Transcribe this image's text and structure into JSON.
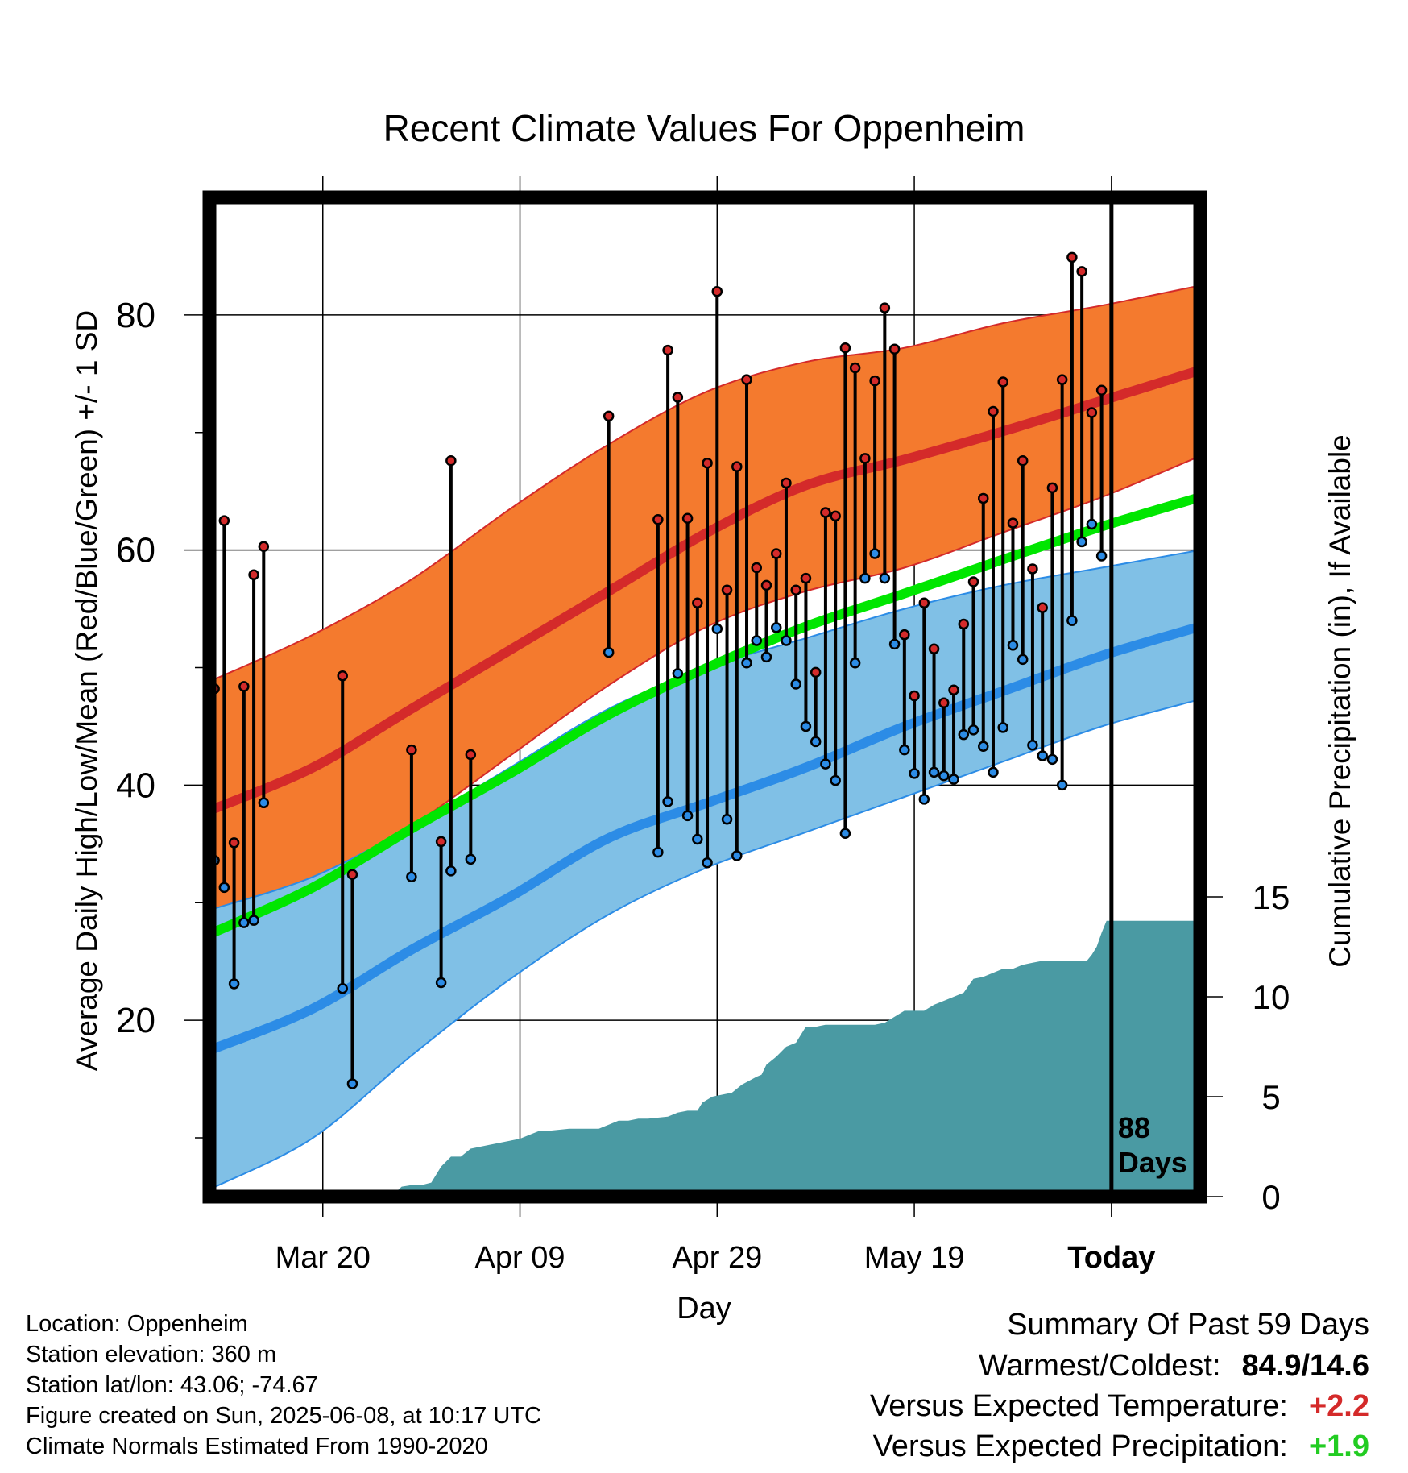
{
  "title": "Recent Climate Values For Oppenheim",
  "xlabel": "Day",
  "ylabel": "Average Daily High/Low/Mean (Red/Blue/Green) +/- 1 SD",
  "y2label": "Cumulative Precipitation (in), If Available",
  "today_marker": {
    "line1": "88",
    "line2": "Days"
  },
  "info": {
    "location": "Location: Oppenheim",
    "elevation": "Station elevation: 360 m",
    "latlon": "Station lat/lon: 43.06; -74.67",
    "created": "Figure created on Sun, 2025-06-08, at 10:17 UTC",
    "normals": "Climate Normals Estimated From 1990-2020"
  },
  "summary": {
    "title": "Summary Of Past 59 Days",
    "warmest_label": "Warmest/Coldest:",
    "warmest_value": "84.9/14.6",
    "temp_label": "Versus Expected Temperature:",
    "temp_value": "+2.2",
    "precip_label": "Versus Expected Precipitation:",
    "precip_value": "+1.9"
  },
  "colors": {
    "high_band": "#f47a2e",
    "high_line": "#d42a2a",
    "low_band": "#80c0e6",
    "low_line": "#2c8ce6",
    "mean_line": "#00e600",
    "precip_fill": "#4a9aa3",
    "positive_temp": "#d42a2a",
    "positive_precip": "#22cc22"
  },
  "chart_data": {
    "type": "line",
    "x_unit": "day index (0 = Mar 09)",
    "x_ticks": [
      {
        "day": 11,
        "label": "Mar 20"
      },
      {
        "day": 31,
        "label": "Apr 09"
      },
      {
        "day": 51,
        "label": "Apr 29"
      },
      {
        "day": 71,
        "label": "May 19"
      },
      {
        "day": 91,
        "label": "Today"
      }
    ],
    "xlim": [
      -0.5,
      100
    ],
    "ylim": [
      5,
      90
    ],
    "y_ticks": [
      20,
      40,
      60,
      80
    ],
    "y2lim": [
      0,
      50
    ],
    "y2_ticks": [
      0,
      5,
      10,
      15
    ],
    "today_day": 91,
    "normals": {
      "days": [
        0,
        10,
        20,
        30,
        40,
        50,
        60,
        70,
        80,
        90,
        100
      ],
      "high_mean": [
        38,
        41.5,
        46.5,
        51.5,
        56.5,
        61.5,
        65.5,
        67.7,
        70.1,
        72.7,
        75.3
      ],
      "high_upper": [
        49,
        52.8,
        57.5,
        63.5,
        69,
        73.5,
        76,
        77.2,
        79.3,
        80.8,
        82.5
      ],
      "high_lower": [
        29,
        31.5,
        36.5,
        42.5,
        48.5,
        53.5,
        56.5,
        58.5,
        61.5,
        64.5,
        68
      ],
      "low_mean": [
        17.6,
        21,
        26,
        30.5,
        35.5,
        38.5,
        41.5,
        45,
        48,
        51,
        53.5
      ],
      "low_upper": [
        29.5,
        32.2,
        36.5,
        41.5,
        46.5,
        50,
        52.5,
        55,
        57,
        58.5,
        60
      ],
      "low_lower": [
        5.8,
        10,
        17,
        23.5,
        29,
        33,
        36,
        39,
        42,
        45,
        47.3
      ],
      "mean": [
        27.5,
        31.3,
        36.3,
        41,
        46,
        50,
        53.5,
        56.3,
        59.2,
        62,
        64.5
      ]
    },
    "observations": [
      {
        "day": 0,
        "high": 48.2,
        "low": 33.6
      },
      {
        "day": 1,
        "high": 62.5,
        "low": 31.3
      },
      {
        "day": 2,
        "high": 35.1,
        "low": 23.1
      },
      {
        "day": 3,
        "high": 48.4,
        "low": 28.3
      },
      {
        "day": 4,
        "high": 57.9,
        "low": 28.5
      },
      {
        "day": 5,
        "high": 60.3,
        "low": 38.5
      },
      {
        "day": 13,
        "high": 49.3,
        "low": 22.7
      },
      {
        "day": 14,
        "high": 32.4,
        "low": 14.6
      },
      {
        "day": 20,
        "high": 43.0,
        "low": 32.2
      },
      {
        "day": 23,
        "high": 35.2,
        "low": 23.2
      },
      {
        "day": 24,
        "high": 67.6,
        "low": 32.7
      },
      {
        "day": 26,
        "high": 42.6,
        "low": 33.7
      },
      {
        "day": 40,
        "high": 71.4,
        "low": 51.3
      },
      {
        "day": 45,
        "high": 62.6,
        "low": 34.3
      },
      {
        "day": 46,
        "high": 77.0,
        "low": 38.6
      },
      {
        "day": 47,
        "high": 73.0,
        "low": 49.5
      },
      {
        "day": 48,
        "high": 62.7,
        "low": 37.4
      },
      {
        "day": 49,
        "high": 55.5,
        "low": 35.4
      },
      {
        "day": 50,
        "high": 67.4,
        "low": 33.4
      },
      {
        "day": 51,
        "high": 82.0,
        "low": 53.3
      },
      {
        "day": 52,
        "high": 56.6,
        "low": 37.1
      },
      {
        "day": 53,
        "high": 67.1,
        "low": 34.0
      },
      {
        "day": 54,
        "high": 74.5,
        "low": 50.4
      },
      {
        "day": 55,
        "high": 58.5,
        "low": 52.3
      },
      {
        "day": 56,
        "high": 57.0,
        "low": 50.9
      },
      {
        "day": 57,
        "high": 59.7,
        "low": 53.4
      },
      {
        "day": 58,
        "high": 65.7,
        "low": 52.3
      },
      {
        "day": 59,
        "high": 56.6,
        "low": 48.6
      },
      {
        "day": 60,
        "high": 57.6,
        "low": 45.0
      },
      {
        "day": 61,
        "high": 49.6,
        "low": 43.7
      },
      {
        "day": 62,
        "high": 63.2,
        "low": 41.8
      },
      {
        "day": 63,
        "high": 62.9,
        "low": 40.4
      },
      {
        "day": 64,
        "high": 77.2,
        "low": 35.9
      },
      {
        "day": 65,
        "high": 75.5,
        "low": 50.4
      },
      {
        "day": 66,
        "high": 67.8,
        "low": 57.6
      },
      {
        "day": 67,
        "high": 74.4,
        "low": 59.7
      },
      {
        "day": 68,
        "high": 80.6,
        "low": 57.6
      },
      {
        "day": 69,
        "high": 77.1,
        "low": 52.0
      },
      {
        "day": 70,
        "high": 52.8,
        "low": 43.0
      },
      {
        "day": 71,
        "high": 47.6,
        "low": 41.0
      },
      {
        "day": 72,
        "high": 55.5,
        "low": 38.8
      },
      {
        "day": 73,
        "high": 51.6,
        "low": 41.1
      },
      {
        "day": 74,
        "high": 47.0,
        "low": 40.8
      },
      {
        "day": 75,
        "high": 48.1,
        "low": 40.5
      },
      {
        "day": 76,
        "high": 53.7,
        "low": 44.3
      },
      {
        "day": 77,
        "high": 57.3,
        "low": 44.7
      },
      {
        "day": 78,
        "high": 64.4,
        "low": 43.3
      },
      {
        "day": 79,
        "high": 71.8,
        "low": 41.1
      },
      {
        "day": 80,
        "high": 74.3,
        "low": 44.9
      },
      {
        "day": 81,
        "high": 62.3,
        "low": 51.9
      },
      {
        "day": 82,
        "high": 67.6,
        "low": 50.7
      },
      {
        "day": 83,
        "high": 58.4,
        "low": 43.4
      },
      {
        "day": 84,
        "high": 55.1,
        "low": 42.5
      },
      {
        "day": 85,
        "high": 65.3,
        "low": 42.2
      },
      {
        "day": 86,
        "high": 74.5,
        "low": 40.0
      },
      {
        "day": 87,
        "high": 84.9,
        "low": 54.0
      },
      {
        "day": 88,
        "high": 83.7,
        "low": 60.7
      },
      {
        "day": 89,
        "high": 71.7,
        "low": 62.2
      },
      {
        "day": 90,
        "high": 73.6,
        "low": 59.5
      }
    ],
    "precip": {
      "days": [
        17.9,
        19,
        20.3,
        21.2,
        22,
        23,
        24,
        25,
        26,
        28,
        30,
        31,
        32,
        33,
        34,
        36,
        39,
        40,
        41,
        42,
        43,
        44,
        46,
        47,
        48,
        49,
        49.5,
        50.5,
        51.5,
        52.5,
        53.5,
        55,
        55.5,
        56,
        57,
        58,
        59,
        60,
        61,
        62,
        63,
        64,
        65,
        66,
        67,
        68,
        69,
        70,
        71,
        72,
        73,
        74,
        75,
        76,
        77,
        78,
        79,
        80,
        81,
        82,
        83,
        84,
        85,
        86,
        87,
        88,
        88.5,
        89,
        89.5,
        90,
        90.5,
        91,
        92,
        100
      ],
      "values": [
        0,
        0.5,
        0.6,
        0.6,
        0.7,
        1.5,
        2.0,
        2.0,
        2.4,
        2.6,
        2.8,
        2.9,
        3.1,
        3.3,
        3.3,
        3.4,
        3.4,
        3.6,
        3.8,
        3.8,
        3.9,
        3.9,
        4.0,
        4.2,
        4.3,
        4.3,
        4.7,
        5.0,
        5.1,
        5.2,
        5.6,
        6.0,
        6.1,
        6.6,
        7.0,
        7.5,
        7.7,
        8.5,
        8.5,
        8.6,
        8.6,
        8.6,
        8.6,
        8.6,
        8.6,
        8.7,
        9.0,
        9.3,
        9.3,
        9.3,
        9.6,
        9.8,
        10.0,
        10.2,
        10.9,
        11.0,
        11.2,
        11.4,
        11.4,
        11.6,
        11.7,
        11.8,
        11.8,
        11.8,
        11.8,
        11.8,
        11.8,
        12.1,
        12.5,
        13.2,
        13.8,
        13.8,
        13.8,
        13.8
      ]
    }
  }
}
